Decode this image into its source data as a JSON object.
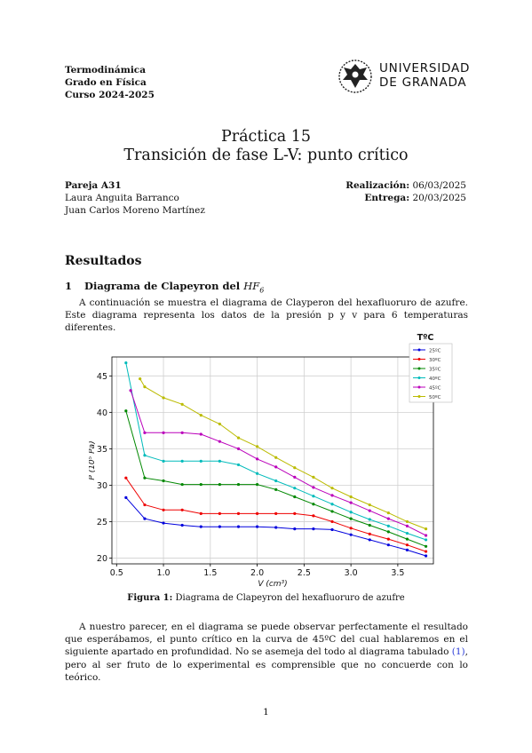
{
  "header": {
    "course_lines": [
      "Termodinámica",
      "Grado en Física",
      "Curso 2024-2025"
    ],
    "university_lines": [
      "UNIVERSIDAD",
      "DE GRANADA"
    ]
  },
  "title": {
    "line1": "Práctica 15",
    "line2": "Transición de fase L-V: punto crítico"
  },
  "meta": {
    "pair_label": "Pareja A31",
    "authors": [
      "Laura Anguita Barranco",
      "Juan Carlos Moreno Martínez"
    ],
    "realizacion_label": "Realización:",
    "realizacion_date": "06/03/2025",
    "entrega_label": "Entrega:",
    "entrega_date": "20/03/2025"
  },
  "results_heading": "Resultados",
  "section": {
    "number": "1",
    "title": "Diagrama de Clapeyron del ",
    "formula_base": "HF",
    "formula_sub": "6"
  },
  "intro_paragraph": "A continuación se muestra el diagrama de Clayperon del hexafluoruro de azufre. Este diagrama representa los datos de la presión p y v para 6 temperaturas diferentes.",
  "caption": {
    "label": "Figura 1:",
    "text": "Diagrama de Clapeyron del hexafluoruro de azufre"
  },
  "body_paragraph": {
    "before_ref": "A nuestro parecer, en el diagrama se puede observar perfectamente el resultado que esperábamos, el punto crítico en la curva de 45ºC del cual hablaremos en el siguiente apartado en profundidad. No se asemeja del todo al diagrama tabulado ",
    "ref": "(1)",
    "after_ref": ", pero al ser fruto de lo experimental es comprensible que no concuerde con lo teórico."
  },
  "page_number": "1",
  "chart_data": {
    "type": "line",
    "xlabel": "V (cm³)",
    "ylabel": "P (10⁵ Pa)",
    "xlim": [
      0.45,
      3.88
    ],
    "ylim": [
      19.2,
      47.6
    ],
    "xticks": [
      0.5,
      1.0,
      1.5,
      2.0,
      2.5,
      3.0,
      3.5
    ],
    "xtick_labels": [
      "0.5",
      "1.0",
      "1.5",
      "2.0",
      "2.5",
      "3.0",
      "3.5"
    ],
    "yticks": [
      20,
      25,
      30,
      35,
      40,
      45
    ],
    "ytick_labels": [
      "20",
      "25",
      "30",
      "35",
      "40",
      "45"
    ],
    "grid": true,
    "legend_title": "TºC",
    "legend_position": "top-right",
    "series": [
      {
        "name": "25ºC",
        "color": "#0000dd",
        "x": [
          0.6,
          0.8,
          1.0,
          1.2,
          1.4,
          1.6,
          1.8,
          2.0,
          2.2,
          2.4,
          2.6,
          2.8,
          3.0,
          3.2,
          3.4,
          3.6,
          3.8
        ],
        "y": [
          28.3,
          25.4,
          24.8,
          24.5,
          24.3,
          24.3,
          24.3,
          24.3,
          24.2,
          24.0,
          24.0,
          23.9,
          23.2,
          22.5,
          21.8,
          21.1,
          20.3
        ]
      },
      {
        "name": "30ºC",
        "color": "#ee0000",
        "x": [
          0.6,
          0.8,
          1.0,
          1.2,
          1.4,
          1.6,
          1.8,
          2.0,
          2.2,
          2.4,
          2.6,
          2.8,
          3.0,
          3.2,
          3.4,
          3.6,
          3.8
        ],
        "y": [
          31.0,
          27.3,
          26.6,
          26.6,
          26.1,
          26.1,
          26.1,
          26.1,
          26.1,
          26.1,
          25.8,
          25.0,
          24.1,
          23.3,
          22.6,
          21.8,
          20.9
        ]
      },
      {
        "name": "35ºC",
        "color": "#008800",
        "x": [
          0.6,
          0.8,
          1.0,
          1.2,
          1.4,
          1.6,
          1.8,
          2.0,
          2.2,
          2.4,
          2.6,
          2.8,
          3.0,
          3.2,
          3.4,
          3.6,
          3.8
        ],
        "y": [
          40.2,
          31.0,
          30.6,
          30.1,
          30.1,
          30.1,
          30.1,
          30.1,
          29.4,
          28.4,
          27.4,
          26.4,
          25.4,
          24.5,
          23.6,
          22.6,
          21.6
        ]
      },
      {
        "name": "40ºC",
        "color": "#00bbbb",
        "x": [
          0.6,
          0.8,
          1.0,
          1.2,
          1.4,
          1.6,
          1.8,
          2.0,
          2.2,
          2.4,
          2.6,
          2.8,
          3.0,
          3.2,
          3.4,
          3.6,
          3.8
        ],
        "y": [
          46.8,
          34.1,
          33.3,
          33.3,
          33.3,
          33.3,
          32.8,
          31.6,
          30.6,
          29.6,
          28.5,
          27.4,
          26.3,
          25.3,
          24.4,
          23.4,
          22.5
        ]
      },
      {
        "name": "45ºC",
        "color": "#bb00bb",
        "x": [
          0.65,
          0.8,
          1.0,
          1.2,
          1.4,
          1.6,
          1.8,
          2.0,
          2.2,
          2.4,
          2.6,
          2.8,
          3.0,
          3.2,
          3.4,
          3.6,
          3.8
        ],
        "y": [
          43.0,
          37.2,
          37.2,
          37.2,
          37.0,
          36.0,
          35.0,
          33.6,
          32.5,
          31.1,
          29.7,
          28.6,
          27.6,
          26.5,
          25.4,
          24.4,
          23.1
        ]
      },
      {
        "name": "50ºC",
        "color": "#bbbb00",
        "x": [
          0.75,
          0.8,
          1.0,
          1.2,
          1.4,
          1.6,
          1.8,
          2.0,
          2.2,
          2.4,
          2.6,
          2.8,
          3.0,
          3.2,
          3.4,
          3.6,
          3.8
        ],
        "y": [
          44.6,
          43.5,
          42.0,
          41.1,
          39.6,
          38.4,
          36.5,
          35.3,
          33.8,
          32.4,
          31.1,
          29.6,
          28.4,
          27.3,
          26.2,
          25.0,
          24.0
        ]
      }
    ]
  }
}
